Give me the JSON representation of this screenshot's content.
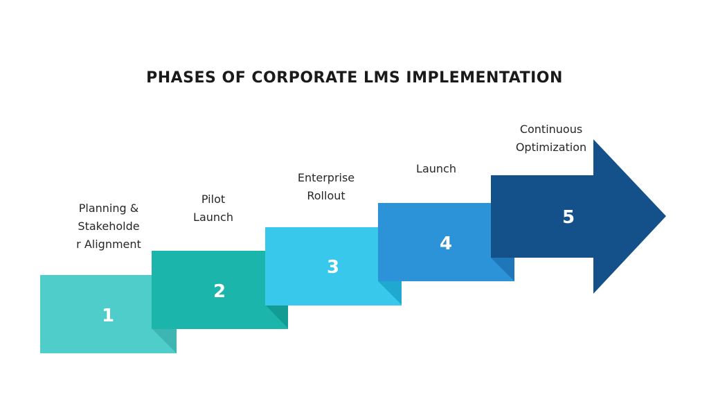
{
  "title": "PHASES OF CORPORATE LMS IMPLEMENTATION",
  "phases": [
    {
      "number": "1",
      "label_lines": [
        "Planning &",
        "Stakeholde",
        "r Alignment"
      ],
      "color": "#4ECDCB",
      "fold_color": "#3DB5B3"
    },
    {
      "number": "2",
      "label_lines": [
        "Pilot",
        "Launch"
      ],
      "color": "#1CB5AC",
      "fold_color": "#139C93"
    },
    {
      "number": "3",
      "label_lines": [
        "Enterprise",
        "Rollout"
      ],
      "color": "#38C8EC",
      "fold_color": "#1FA9D0"
    },
    {
      "number": "4",
      "label_lines": [
        "Launch"
      ],
      "color": "#2C93D8",
      "fold_color": "#1F76B8"
    },
    {
      "number": "5",
      "label_lines": [
        "Continuous",
        "Optimization"
      ],
      "color": "#14518B",
      "fold_color": "#0F3F6E"
    }
  ]
}
